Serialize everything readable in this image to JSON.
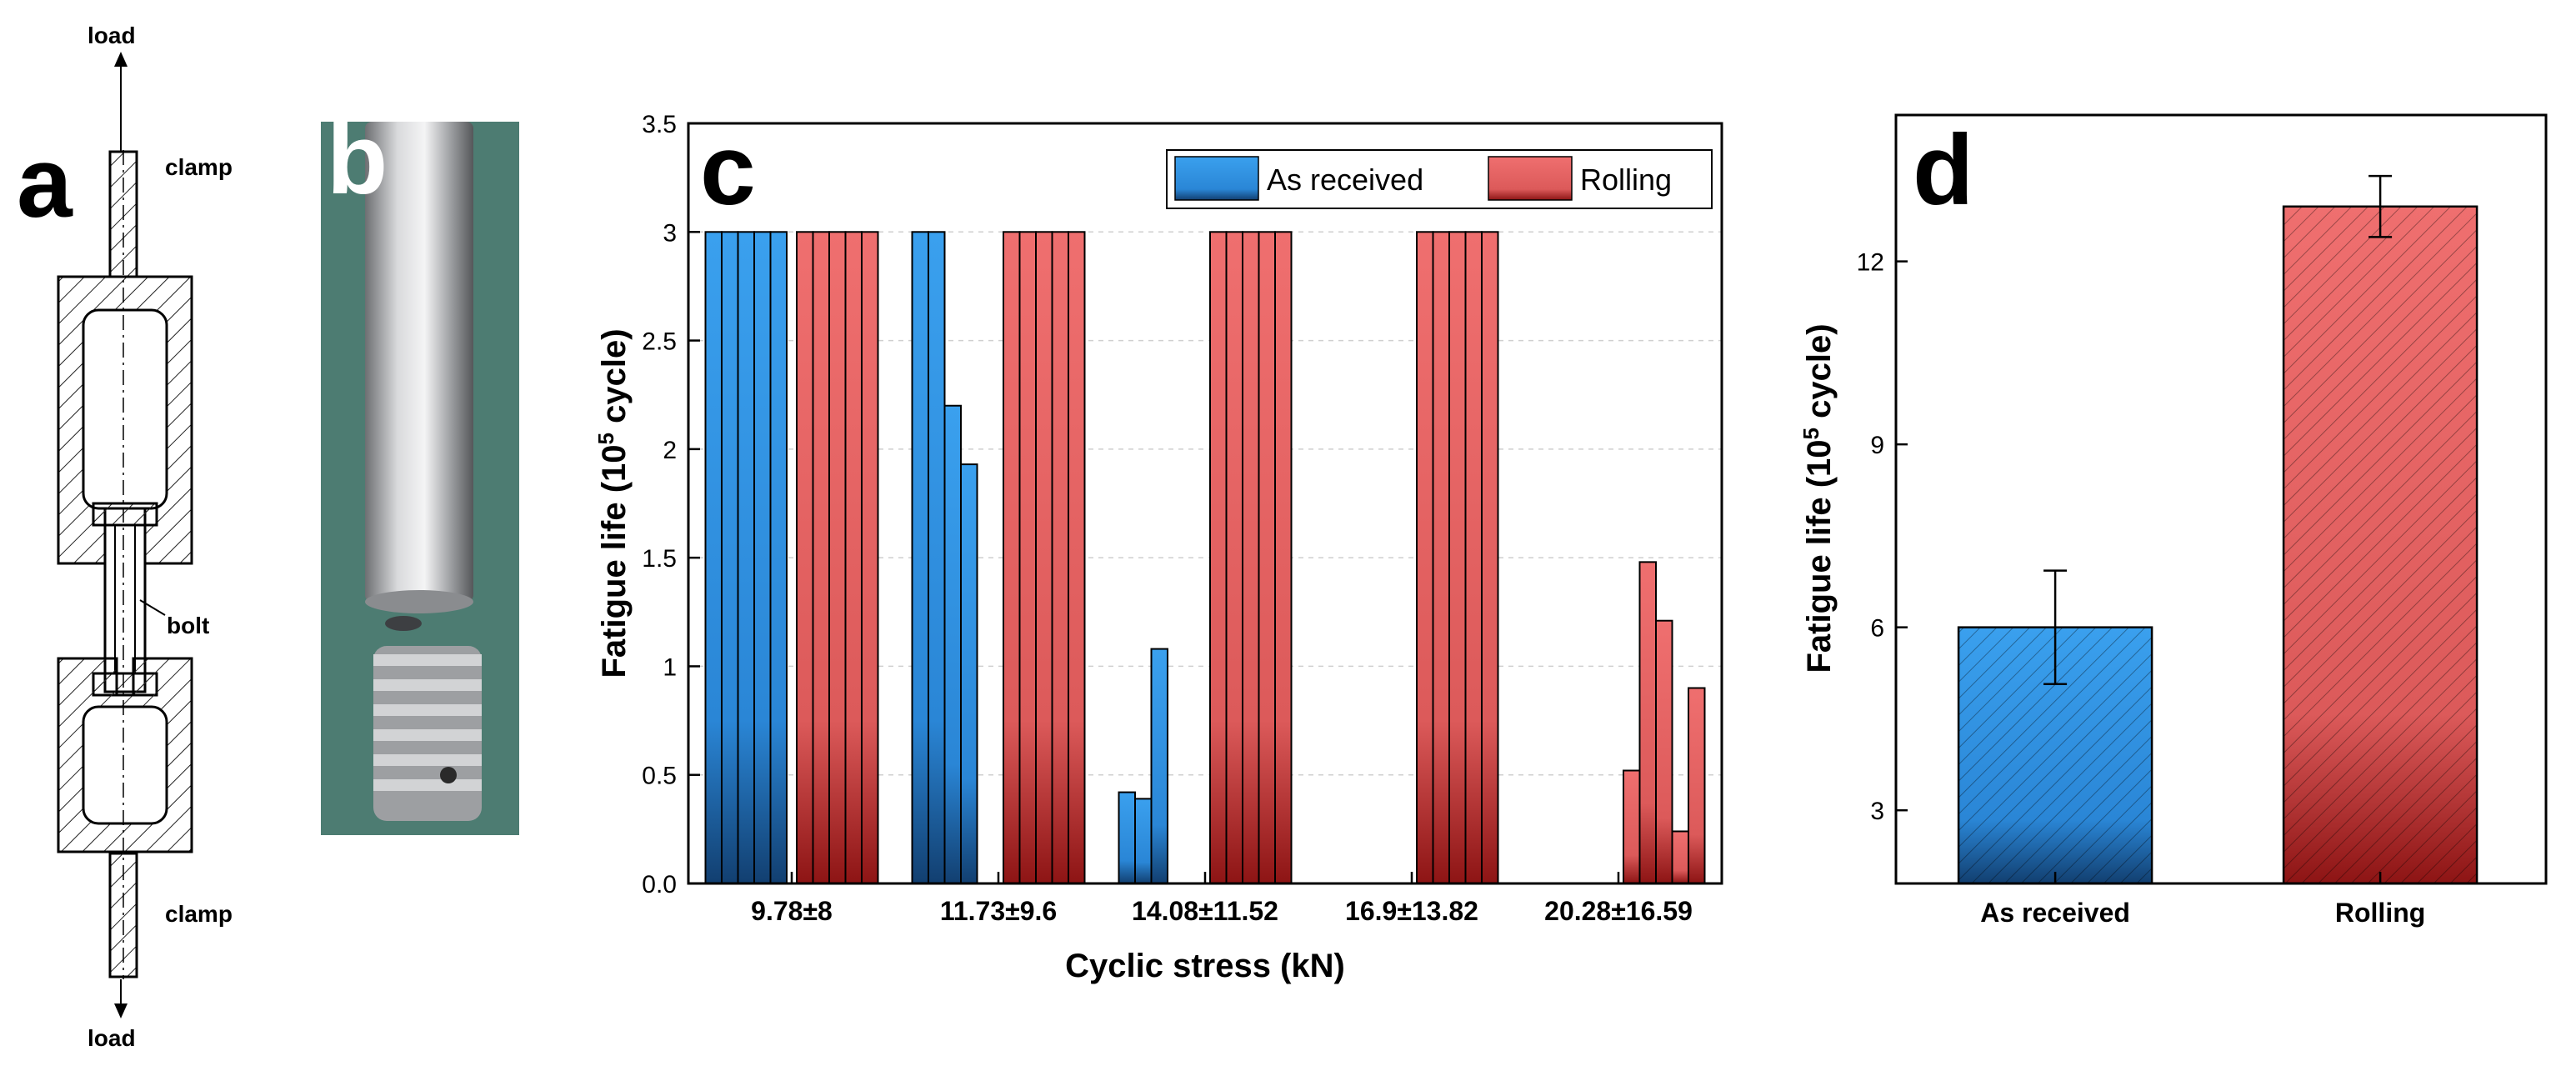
{
  "colors": {
    "as_received": "#2f8fe0",
    "rolling": "#e36161",
    "as_received_dark": "#114a86",
    "rolling_dark": "#9b1a1a"
  },
  "panel_a": {
    "letter": "a",
    "labels": {
      "load_top": "load",
      "clamp_top": "clamp",
      "bolt": "bolt",
      "clamp_bottom": "clamp",
      "load_bottom": "load"
    }
  },
  "panel_b": {
    "letter": "b"
  },
  "chart_data": [
    {
      "panel": "c",
      "type": "bar",
      "title": "",
      "xlabel": "Cyclic stress (kN)",
      "ylabel": "Fatigue life (10^5 cycle)",
      "ylabel_main": "Fatigue life (10",
      "ylabel_sup": "5",
      "ylabel_tail": " cycle)",
      "ylim": [
        0,
        3.5
      ],
      "yticks": [
        0.0,
        0.5,
        1,
        1.5,
        2,
        2.5,
        3,
        3.5
      ],
      "ytick_labels": [
        "0.0",
        "0.5",
        "1",
        "1.5",
        "2",
        "2.5",
        "3",
        "3.5"
      ],
      "grid": true,
      "legend": "top-right",
      "categories": [
        "9.78±8",
        "11.73±9.6",
        "14.08±11.52",
        "16.9±13.82",
        "20.28±16.59"
      ],
      "series": [
        {
          "name": "As received",
          "values": [
            [
              3,
              3,
              3,
              3,
              3
            ],
            [
              3,
              3,
              2.2,
              1.93
            ],
            [
              0.42,
              0.39,
              1.08
            ],
            [],
            []
          ]
        },
        {
          "name": "Rolling",
          "values": [
            [
              3,
              3,
              3,
              3,
              3
            ],
            [
              3,
              3,
              3,
              3,
              3
            ],
            [
              3,
              3,
              3,
              3,
              3
            ],
            [
              3,
              3,
              3,
              3,
              3
            ],
            [
              0.52,
              1.48,
              1.21,
              0.24,
              0.9
            ]
          ]
        }
      ]
    },
    {
      "panel": "d",
      "type": "bar",
      "title": "",
      "xlabel": "",
      "ylabel": "Fatigue life (10^5 cycle)",
      "ylabel_main": "Fatigue life (10",
      "ylabel_sup": "5",
      "ylabel_tail": " cycle)",
      "ylim": [
        1.8,
        14.4
      ],
      "yticks": [
        3,
        6,
        9,
        12
      ],
      "ytick_labels": [
        "3",
        "6",
        "9",
        "12"
      ],
      "categories": [
        "As received",
        "Rolling"
      ],
      "values": [
        6.0,
        12.9
      ],
      "errors": [
        0.93,
        0.5
      ]
    }
  ]
}
